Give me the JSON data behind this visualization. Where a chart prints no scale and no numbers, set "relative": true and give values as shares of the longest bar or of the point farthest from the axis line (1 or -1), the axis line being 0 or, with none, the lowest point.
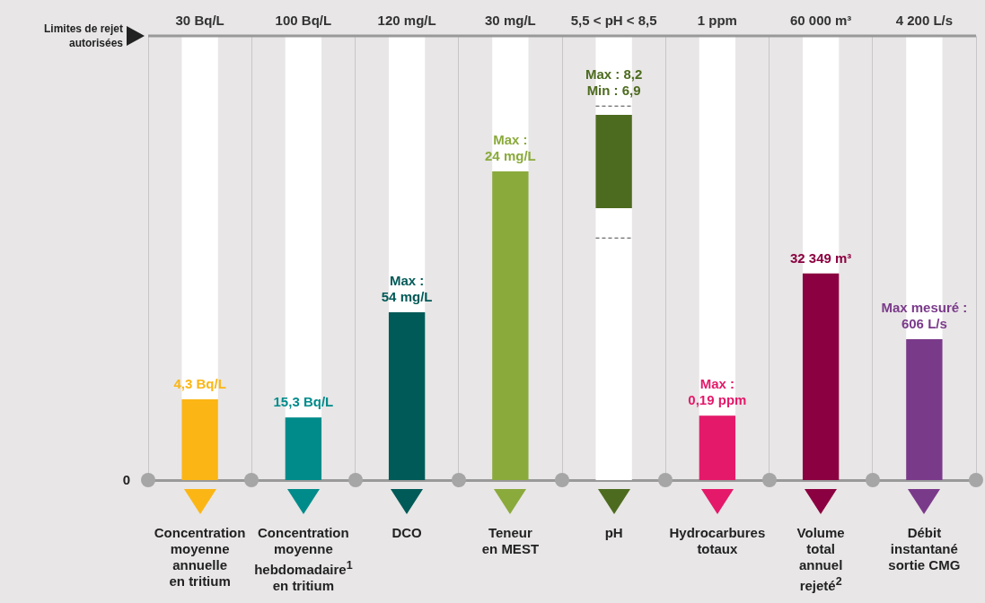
{
  "chart_data": {
    "type": "bar",
    "relative": true,
    "stacked": true,
    "grid": "x",
    "legend": false,
    "categories": [
      "Concentration\nmoyenne\nannuelle\nen tritium",
      "Concentration\nmoyenne\nhebdomadaire$^{1}$\nen tritium",
      "DCO",
      "Teneur\nen MEST",
      "pH",
      "Hydrocarbures\ntotaux",
      "Volume\ntotal\nannuel\nrejeté$^{2}$",
      "Débit\ninstantané\nsortie CMG"
    ],
    "series": [
      {
        "color": "#ffffff",
        "line_style": "dashed",
        "values": [
          null,
          null,
          null,
          null,
          0.545,
          null,
          null,
          null
        ]
      },
      {
        "color": "#ffffff",
        "values": [
          null,
          null,
          null,
          null,
          0.067,
          null,
          null,
          null
        ]
      },
      {
        "colors": [
          "#fbb615",
          "#008b8b",
          "#005a58",
          "#8aaa3c",
          "#4d6b1f",
          "#e5196a",
          "#8b0040",
          "#7a3a8a"
        ],
        "values": [
          0.182,
          0.141,
          0.378,
          0.695,
          0.21,
          0.145,
          0.465,
          0.317
        ]
      },
      {
        "color": "#ffffff",
        "line_style": "dashed",
        "values": [
          null,
          null,
          null,
          null,
          0.02,
          null,
          null,
          null
        ]
      },
      {
        "color": "#ffffff",
        "values": [
          0.818,
          0.859,
          0.622,
          0.305,
          0.158,
          0.855,
          0.535,
          0.683
        ]
      }
    ],
    "ref_lines": [
      {
        "axis": "y",
        "value": 1,
        "label": "Limites de rejet autorisées",
        "color": "#999999"
      }
    ],
    "annotations": [
      "0",
      {
        "text": "4,3 Bq/L",
        "x": "Concentration\nmoyenne\nannuelle\nen tritium",
        "y": 0.182
      },
      {
        "text": "15,3 Bq/L",
        "x": "Concentration\nmoyenne\nhebdomadaire$^{1}$\nen tritium",
        "y": 0.141
      },
      {
        "text": "Max :\n54 mg/L",
        "x": "DCO",
        "y": 0.378
      },
      {
        "text": "Max :\n24 mg/L",
        "x": "Teneur\nen MEST",
        "y": 0.695
      },
      {
        "text": "Max : 8,2\nMin : 6,9",
        "x": "pH",
        "y": 0.842
      },
      {
        "text": "Max :\n0,19 ppm",
        "x": "Hydrocarbures\ntotaux",
        "y": 0.145
      },
      {
        "text": "32 349 m³",
        "x": "Volume\ntotal\nannuel\nrejeté$^{2}$",
        "y": 0.465
      },
      {
        "text": "Max mesuré :\n606 L/s",
        "x": "Débit\ninstantané\nsortie CMG",
        "y": 0.317
      },
      {
        "text": "30 Bq/L",
        "x": "Concentration\nmoyenne\nannuelle\nen tritium",
        "y": 1
      },
      {
        "text": "100 Bq/L",
        "x": "Concentration\nmoyenne\nhebdomadaire$^{1}$\nen tritium",
        "y": 1
      },
      {
        "text": "120 mg/L",
        "x": "DCO",
        "y": 1
      },
      {
        "text": "30 mg/L",
        "x": "Teneur\nen MEST",
        "y": 1
      },
      {
        "text": "5,5 < pH < 8,5",
        "x": "pH",
        "y": 1
      },
      {
        "text": "1 ppm",
        "x": "Hydrocarbures\ntotaux",
        "y": 1
      },
      {
        "text": "60 000 m³",
        "x": "Volume\ntotal\nannuel\nrejeté$^{2}$",
        "y": 1
      },
      {
        "text": "4 200 L/s",
        "x": "Débit\ninstantané\nsortie CMG",
        "y": 1
      }
    ]
  }
}
